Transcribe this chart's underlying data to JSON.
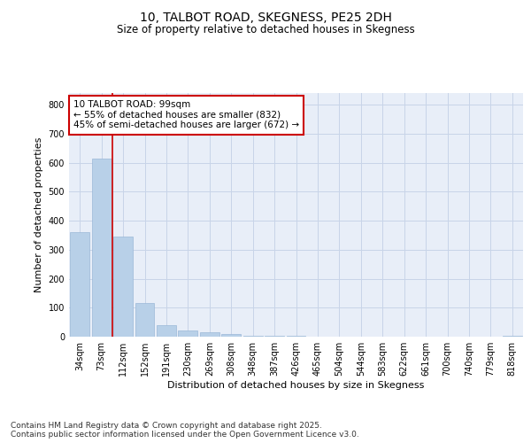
{
  "title": "10, TALBOT ROAD, SKEGNESS, PE25 2DH",
  "subtitle": "Size of property relative to detached houses in Skegness",
  "xlabel": "Distribution of detached houses by size in Skegness",
  "ylabel": "Number of detached properties",
  "categories": [
    "34sqm",
    "73sqm",
    "112sqm",
    "152sqm",
    "191sqm",
    "230sqm",
    "269sqm",
    "308sqm",
    "348sqm",
    "387sqm",
    "426sqm",
    "465sqm",
    "504sqm",
    "544sqm",
    "583sqm",
    "622sqm",
    "661sqm",
    "700sqm",
    "740sqm",
    "779sqm",
    "818sqm"
  ],
  "values": [
    360,
    615,
    345,
    115,
    40,
    20,
    15,
    10,
    4,
    3,
    2,
    0,
    0,
    0,
    0,
    0,
    0,
    0,
    0,
    0,
    2
  ],
  "bar_color": "#b8d0e8",
  "bar_edge_color": "#9ab8d8",
  "grid_color": "#c8d4e8",
  "background_color": "#e8eef8",
  "red_line_color": "#cc0000",
  "annotation_text": "10 TALBOT ROAD: 99sqm\n← 55% of detached houses are smaller (832)\n45% of semi-detached houses are larger (672) →",
  "annotation_box_color": "#ffffff",
  "annotation_box_edge": "#cc0000",
  "ylim": [
    0,
    840
  ],
  "yticks": [
    0,
    100,
    200,
    300,
    400,
    500,
    600,
    700,
    800
  ],
  "footer_text": "Contains HM Land Registry data © Crown copyright and database right 2025.\nContains public sector information licensed under the Open Government Licence v3.0.",
  "fig_bg": "#ffffff",
  "title_fontsize": 10,
  "subtitle_fontsize": 8.5,
  "axis_label_fontsize": 8,
  "tick_fontsize": 7,
  "annotation_fontsize": 7.5,
  "footer_fontsize": 6.5
}
